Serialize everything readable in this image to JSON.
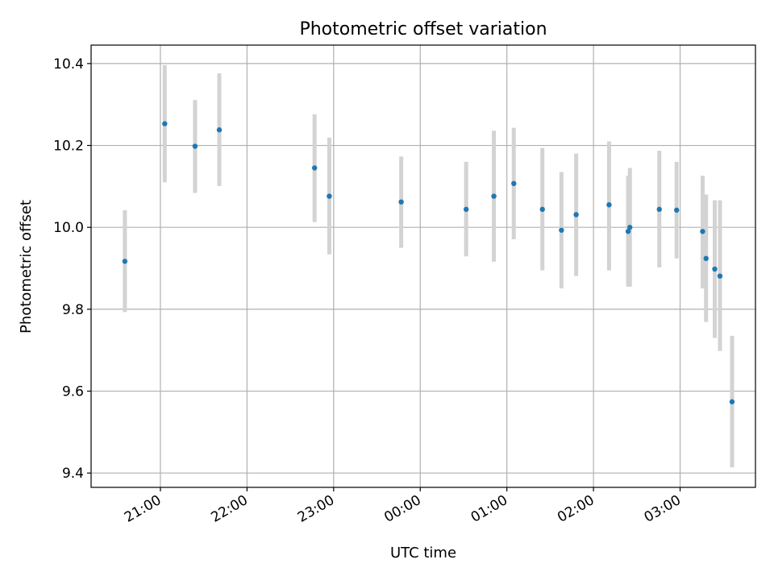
{
  "chart_data": {
    "type": "scatter",
    "title": "Photometric offset variation",
    "xlabel": "UTC time",
    "ylabel": "Photometric offset",
    "x_unit": "hours (UTC, continuing past midnight)",
    "xlim": [
      20.2,
      27.87
    ],
    "ylim": [
      9.365,
      10.445
    ],
    "grid": true,
    "x_ticks": [
      {
        "value": 21,
        "label": "21:00"
      },
      {
        "value": 22,
        "label": "22:00"
      },
      {
        "value": 23,
        "label": "23:00"
      },
      {
        "value": 24,
        "label": "00:00"
      },
      {
        "value": 25,
        "label": "01:00"
      },
      {
        "value": 26,
        "label": "02:00"
      },
      {
        "value": 27,
        "label": "03:00"
      }
    ],
    "y_ticks": [
      {
        "value": 9.4,
        "label": "9.4"
      },
      {
        "value": 9.6,
        "label": "9.6"
      },
      {
        "value": 9.8,
        "label": "9.8"
      },
      {
        "value": 10.0,
        "label": "10.0"
      },
      {
        "value": 10.2,
        "label": "10.2"
      },
      {
        "value": 10.4,
        "label": "10.4"
      }
    ],
    "point_color": "#1f77b4",
    "errorbar_color": "#d3d3d3",
    "points": [
      {
        "x": 20.59,
        "y": 9.917,
        "low": 9.793,
        "high": 10.042
      },
      {
        "x": 21.05,
        "y": 10.253,
        "low": 10.11,
        "high": 10.396
      },
      {
        "x": 21.4,
        "y": 10.198,
        "low": 10.084,
        "high": 10.311
      },
      {
        "x": 21.68,
        "y": 10.238,
        "low": 10.101,
        "high": 10.376
      },
      {
        "x": 22.78,
        "y": 10.145,
        "low": 10.013,
        "high": 10.276
      },
      {
        "x": 22.95,
        "y": 10.076,
        "low": 9.934,
        "high": 10.219
      },
      {
        "x": 23.78,
        "y": 10.062,
        "low": 9.95,
        "high": 10.173
      },
      {
        "x": 24.53,
        "y": 10.044,
        "low": 9.929,
        "high": 10.16
      },
      {
        "x": 24.85,
        "y": 10.076,
        "low": 9.916,
        "high": 10.236
      },
      {
        "x": 25.08,
        "y": 10.107,
        "low": 9.971,
        "high": 10.243
      },
      {
        "x": 25.41,
        "y": 10.044,
        "low": 9.895,
        "high": 10.194
      },
      {
        "x": 25.63,
        "y": 9.993,
        "low": 9.851,
        "high": 10.135
      },
      {
        "x": 25.8,
        "y": 10.031,
        "low": 9.881,
        "high": 10.18
      },
      {
        "x": 26.18,
        "y": 10.055,
        "low": 9.895,
        "high": 10.21
      },
      {
        "x": 26.4,
        "y": 9.99,
        "low": 9.855,
        "high": 10.126
      },
      {
        "x": 26.42,
        "y": 10.0,
        "low": 9.855,
        "high": 10.145
      },
      {
        "x": 26.76,
        "y": 10.044,
        "low": 9.902,
        "high": 10.187
      },
      {
        "x": 26.96,
        "y": 10.042,
        "low": 9.924,
        "high": 10.16
      },
      {
        "x": 27.26,
        "y": 9.99,
        "low": 9.851,
        "high": 10.126
      },
      {
        "x": 27.3,
        "y": 9.924,
        "low": 9.769,
        "high": 10.08
      },
      {
        "x": 27.4,
        "y": 9.898,
        "low": 9.73,
        "high": 10.066
      },
      {
        "x": 27.46,
        "y": 9.881,
        "low": 9.698,
        "high": 10.066
      },
      {
        "x": 27.6,
        "y": 9.574,
        "low": 9.414,
        "high": 9.735
      }
    ]
  }
}
